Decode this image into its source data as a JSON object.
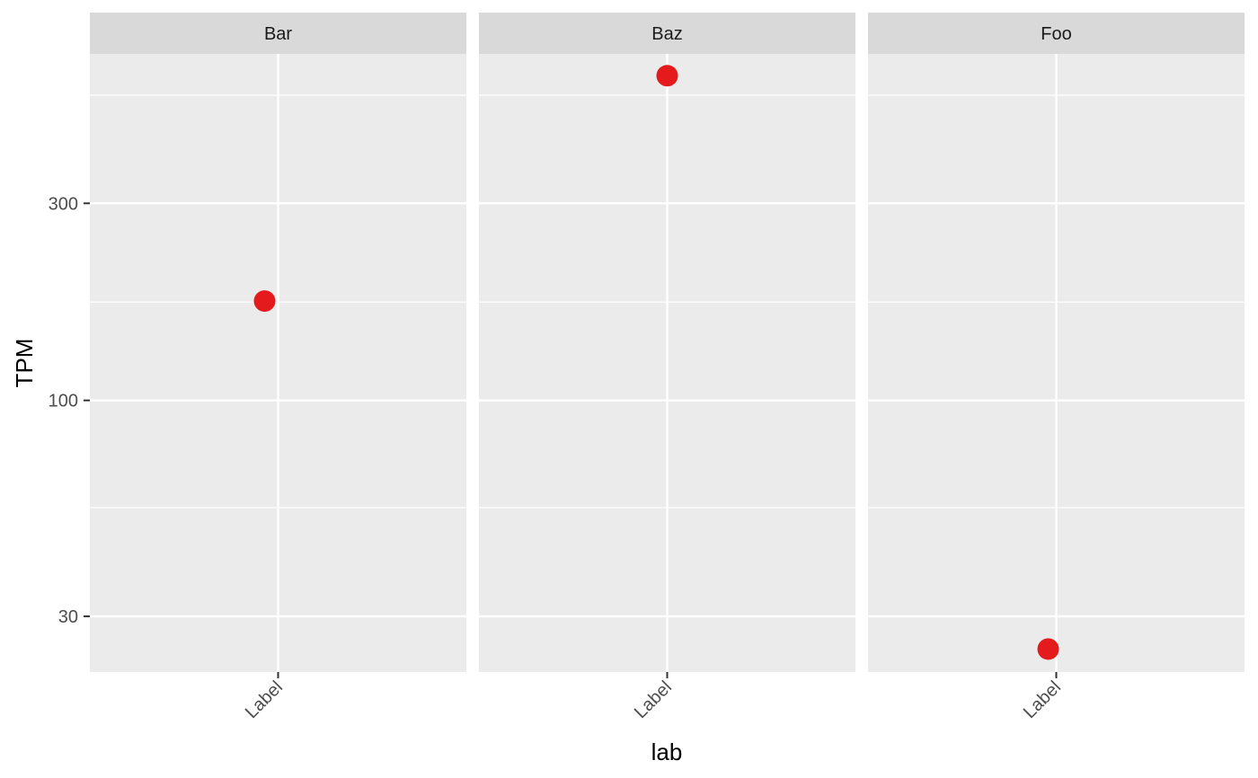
{
  "chart_data": {
    "type": "scatter",
    "facets": [
      {
        "label": "Bar",
        "x": [
          "Label"
        ],
        "y": [
          174
        ]
      },
      {
        "label": "Baz",
        "x": [
          "Label"
        ],
        "y": [
          611
        ]
      },
      {
        "label": "Foo",
        "x": [
          "Label"
        ],
        "y": [
          25
        ]
      }
    ],
    "xlabel": "lab",
    "ylabel": "TPM",
    "yscale": "log10",
    "ylim": [
      22,
      690
    ],
    "yticks": [
      30,
      100,
      300
    ],
    "ytick_labels": [
      "30",
      "100",
      "300"
    ],
    "yminor": [
      55,
      173,
      548
    ],
    "xtick_labels": [
      "Label"
    ],
    "grid": true,
    "colors": {
      "point": "#e41a1c",
      "panel": "#ebebeb",
      "strip": "#d9d9d9",
      "grid": "#ffffff"
    }
  }
}
